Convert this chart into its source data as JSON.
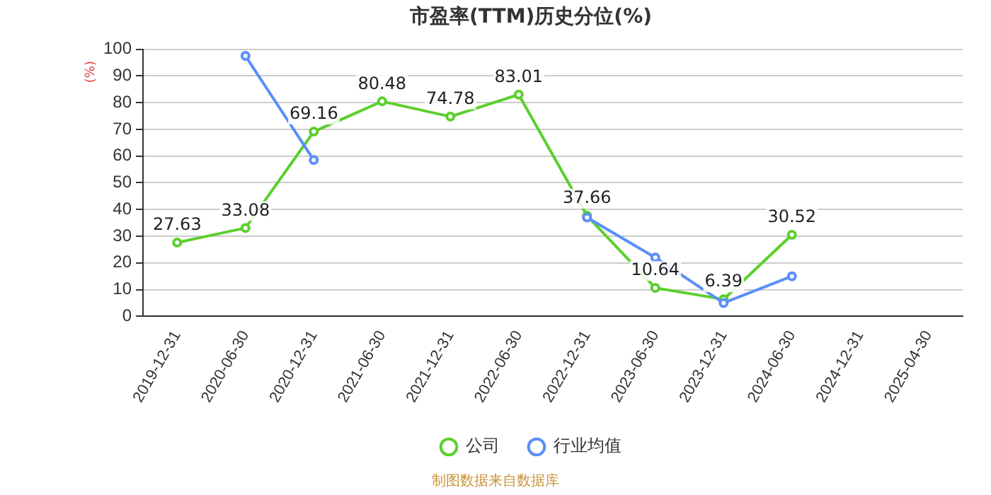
{
  "chart_data": {
    "type": "line",
    "title": "市盈率(TTM)历史分位(%)",
    "ylabel": "(%)",
    "categories": [
      "2019-12-31",
      "2020-06-30",
      "2020-12-31",
      "2021-06-30",
      "2021-12-31",
      "2022-06-30",
      "2022-12-31",
      "2023-06-30",
      "2023-12-31",
      "2024-06-30",
      "2024-12-31",
      "2025-04-30"
    ],
    "series": [
      {
        "name": "公司",
        "color": "#5ccf2e",
        "values": [
          27.63,
          33.08,
          69.16,
          80.48,
          74.78,
          83.01,
          37.66,
          10.64,
          6.39,
          30.52,
          null,
          null
        ],
        "value_labels": [
          "27.63",
          "33.08",
          "69.16",
          "80.48",
          "74.78",
          "83.01",
          "37.66",
          "10.64",
          "6.39",
          "30.52",
          null,
          null
        ]
      },
      {
        "name": "行业均值",
        "color": "#5b8ff9",
        "values": [
          null,
          97.5,
          58.5,
          null,
          null,
          null,
          37,
          22,
          5,
          15,
          null,
          null
        ]
      }
    ],
    "ylim": [
      0,
      100
    ],
    "yticks": [
      0,
      10,
      20,
      30,
      40,
      50,
      60,
      70,
      80,
      90,
      100
    ],
    "grid": "y",
    "legend": "bottom",
    "marker": "circle",
    "line_style": "solid",
    "annotations": [
      "制图数据来自数据库"
    ]
  }
}
